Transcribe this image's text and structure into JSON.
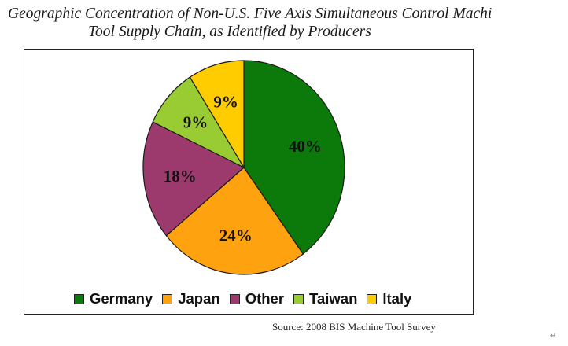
{
  "title": {
    "line1": "Geographic Concentration of Non-U.S. Five Axis Simultaneous Control Machi",
    "line2": "Tool Supply Chain, as Identified by Producers"
  },
  "source": "Source:  2008 BIS Machine Tool Survey",
  "return_mark": "↵",
  "chart_data": {
    "type": "pie",
    "title": "Geographic Concentration of Non-U.S. Five Axis Simultaneous Control Machi Tool Supply Chain, as Identified by Producers",
    "legend_position": "bottom",
    "slices": [
      {
        "label": "Germany",
        "value": 40,
        "display": "40%",
        "color": "#0b7a0b"
      },
      {
        "label": "Japan",
        "value": 24,
        "display": "24%",
        "color": "#ffa20f"
      },
      {
        "label": "Other",
        "value": 18,
        "display": "18%",
        "color": "#9c3a6e"
      },
      {
        "label": "Taiwan",
        "value": 9,
        "display": "9%",
        "color": "#99cc33"
      },
      {
        "label": "Italy",
        "value": 9,
        "display": "9%",
        "color": "#ffcc00"
      }
    ]
  }
}
